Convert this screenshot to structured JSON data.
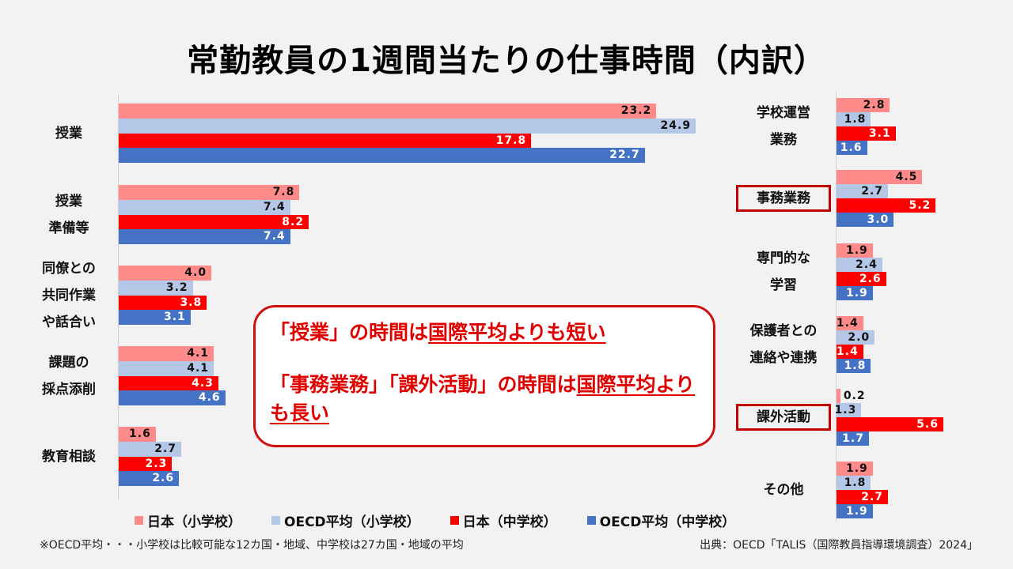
{
  "title": "常勤教員の1週間当たりの仕事時間（内訳）",
  "legend": [
    {
      "label": "日本（小学校）",
      "color": "#ff8a8a"
    },
    {
      "label": "OECD平均（小学校）",
      "color": "#b4c7e7"
    },
    {
      "label": "日本（中学校）",
      "color": "#ff0000"
    },
    {
      "label": "OECD平均（中学校）",
      "color": "#4472c4"
    }
  ],
  "callout": {
    "line1_pre": "「授業」の時間は",
    "line1_under": "国際平均よりも短い",
    "line2_pre": "「事務業務」「課外活動」の時間は",
    "line2_under": "国際平均よりも長い"
  },
  "footnote": "※OECD平均・・・小学校は比較可能な12カ国・地域、中学校は27カ国・地域の平均",
  "source": "出典：OECD「TALIS（国際教員指導環境調査）2024」",
  "chart_data": [
    {
      "type": "bar",
      "orientation": "horizontal",
      "title": "常勤教員の1週間当たりの仕事時間（内訳）",
      "xlabel": "",
      "ylabel": "",
      "categories": [
        "授業",
        "授業準備等",
        "同僚との共同作業や話合い",
        "課題の採点添削",
        "教育相談"
      ],
      "series": [
        {
          "name": "日本（小学校）",
          "values": [
            23.2,
            7.8,
            4.0,
            4.1,
            1.6
          ]
        },
        {
          "name": "OECD平均（小学校）",
          "values": [
            24.9,
            7.4,
            3.2,
            4.1,
            2.7
          ]
        },
        {
          "name": "日本（中学校）",
          "values": [
            17.8,
            8.2,
            3.8,
            4.3,
            2.3
          ]
        },
        {
          "name": "OECD平均（中学校）",
          "values": [
            22.7,
            7.4,
            3.1,
            4.6,
            2.6
          ]
        }
      ],
      "grid": false,
      "legend_position": "bottom"
    },
    {
      "type": "bar",
      "orientation": "horizontal",
      "xlabel": "",
      "ylabel": "",
      "categories": [
        "学校運営業務",
        "事務業務",
        "専門的な学習",
        "保護者との連絡や連携",
        "課外活動",
        "その他"
      ],
      "highlighted_categories": [
        "事務業務",
        "課外活動"
      ],
      "series": [
        {
          "name": "日本（小学校）",
          "values": [
            2.8,
            4.5,
            1.9,
            1.4,
            0.2,
            1.9
          ]
        },
        {
          "name": "OECD平均（小学校）",
          "values": [
            1.8,
            2.7,
            2.4,
            2.0,
            1.3,
            1.8
          ]
        },
        {
          "name": "日本（中学校）",
          "values": [
            3.1,
            5.2,
            2.6,
            1.4,
            5.6,
            2.7
          ]
        },
        {
          "name": "OECD平均（中学校）",
          "values": [
            1.6,
            3.0,
            1.9,
            1.8,
            1.7,
            1.9
          ]
        }
      ],
      "grid": false,
      "legend_position": "bottom"
    }
  ],
  "left_labels": [
    "授業",
    "授業\n準備等",
    "同僚との\n共同作業\nや話合い",
    "課題の\n採点添削",
    "教育相談"
  ],
  "right_labels": [
    "学校運営\n業務",
    "事務業務",
    "専門的な\n学習",
    "保護者との\n連絡や連携",
    "課外活動",
    "その他"
  ]
}
